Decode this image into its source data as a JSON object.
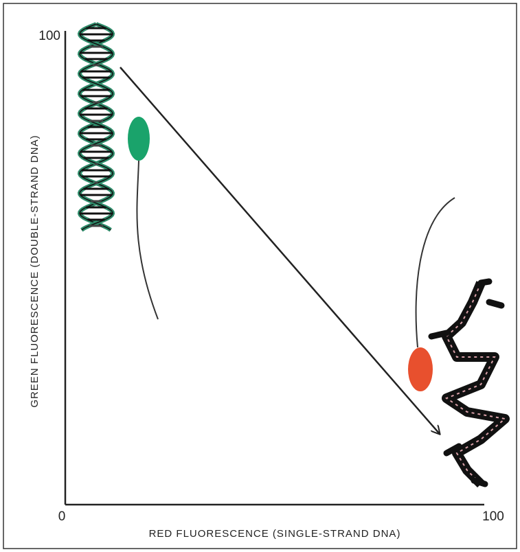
{
  "axes": {
    "y_max": 100,
    "origin": 0,
    "x_max": 100,
    "y_label": "GREEN FLUORESCENCE (DOUBLE-STRAND DNA)",
    "x_label": "RED FLUORESCENCE (SINGLE-STRAND DNA)"
  }
}
